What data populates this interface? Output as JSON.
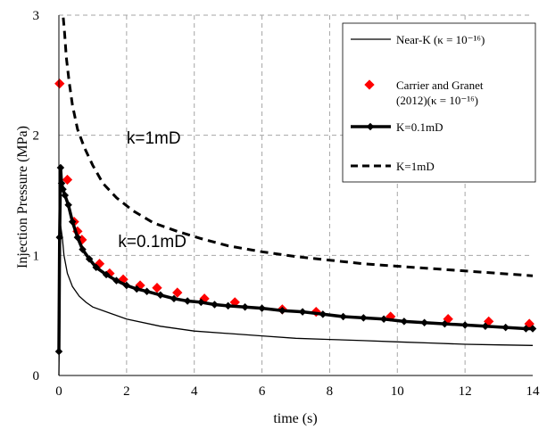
{
  "chart_data": {
    "type": "line",
    "title": "",
    "xlabel": "time (s)",
    "ylabel": "Injection Pressure (MPa)",
    "xlim": [
      0,
      14
    ],
    "ylim": [
      0,
      3
    ],
    "x_ticks": [
      "0",
      "2",
      "4",
      "6",
      "8",
      "10",
      "12",
      "14"
    ],
    "y_ticks": [
      "0",
      "1",
      "2",
      "3"
    ],
    "grid": true,
    "legend_position": "top-right",
    "annotations": [
      {
        "text": "k=1mD",
        "x": 2.0,
        "y": 1.93
      },
      {
        "text": "k=0.1mD",
        "x": 1.75,
        "y": 1.07
      }
    ],
    "series": [
      {
        "name": "Near-K (κ = 10⁻¹⁶)",
        "style": "thin-solid",
        "color": "#000000",
        "x": [
          0,
          0.05,
          0.1,
          0.15,
          0.25,
          0.4,
          0.6,
          0.8,
          1.0,
          1.5,
          2.0,
          3.0,
          4.0,
          5.0,
          6.0,
          7.0,
          8.0,
          9.0,
          10.0,
          11.0,
          12.0,
          13.0,
          14.0
        ],
        "y": [
          0,
          1.25,
          1.15,
          1.0,
          0.85,
          0.74,
          0.66,
          0.61,
          0.57,
          0.52,
          0.47,
          0.41,
          0.37,
          0.35,
          0.33,
          0.31,
          0.3,
          0.29,
          0.28,
          0.27,
          0.26,
          0.255,
          0.25
        ]
      },
      {
        "name": "Carrier and Granet (2012)(κ = 10⁻¹⁶)",
        "style": "markers",
        "color": "#ff0000",
        "x": [
          0.02,
          0.25,
          0.45,
          0.55,
          0.68,
          1.2,
          1.5,
          1.9,
          2.4,
          2.9,
          3.5,
          4.3,
          5.2,
          6.6,
          7.6,
          9.8,
          11.5,
          12.7,
          13.9
        ],
        "y": [
          2.43,
          1.63,
          1.28,
          1.2,
          1.13,
          0.93,
          0.85,
          0.8,
          0.75,
          0.73,
          0.69,
          0.64,
          0.61,
          0.55,
          0.53,
          0.49,
          0.47,
          0.45,
          0.43
        ]
      },
      {
        "name": "K=0.1mD",
        "style": "thick-solid-diamond",
        "color": "#000000",
        "x": [
          0,
          0.02,
          0.05,
          0.08,
          0.12,
          0.18,
          0.28,
          0.4,
          0.55,
          0.7,
          0.9,
          1.1,
          1.4,
          1.7,
          2.0,
          2.3,
          2.6,
          3.0,
          3.4,
          3.8,
          4.2,
          4.6,
          5.0,
          5.5,
          6.0,
          6.6,
          7.2,
          7.8,
          8.4,
          9.0,
          9.6,
          10.2,
          10.8,
          11.4,
          12.0,
          12.6,
          13.2,
          13.8,
          14.0
        ],
        "y": [
          0.2,
          1.15,
          1.73,
          1.6,
          1.55,
          1.5,
          1.42,
          1.28,
          1.15,
          1.05,
          0.97,
          0.9,
          0.84,
          0.79,
          0.75,
          0.72,
          0.7,
          0.67,
          0.64,
          0.62,
          0.61,
          0.59,
          0.58,
          0.57,
          0.56,
          0.54,
          0.53,
          0.51,
          0.49,
          0.48,
          0.47,
          0.45,
          0.44,
          0.43,
          0.42,
          0.41,
          0.4,
          0.39,
          0.39
        ]
      },
      {
        "name": "K=1mD",
        "style": "thick-dashed",
        "color": "#000000",
        "x": [
          0.13,
          0.17,
          0.22,
          0.3,
          0.4,
          0.55,
          0.75,
          1.0,
          1.3,
          1.7,
          2.2,
          2.8,
          3.5,
          4.2,
          5.0,
          6.0,
          7.0,
          8.0,
          9.0,
          10.0,
          11.0,
          12.0,
          13.0,
          14.0
        ],
        "y": [
          2.98,
          2.85,
          2.65,
          2.45,
          2.25,
          2.05,
          1.9,
          1.75,
          1.6,
          1.48,
          1.37,
          1.27,
          1.2,
          1.14,
          1.08,
          1.03,
          0.99,
          0.96,
          0.93,
          0.91,
          0.89,
          0.87,
          0.85,
          0.83
        ]
      }
    ]
  },
  "colors": {
    "marker_red": "#ff0000",
    "grid": "#a6a6a6",
    "line": "#000000"
  }
}
